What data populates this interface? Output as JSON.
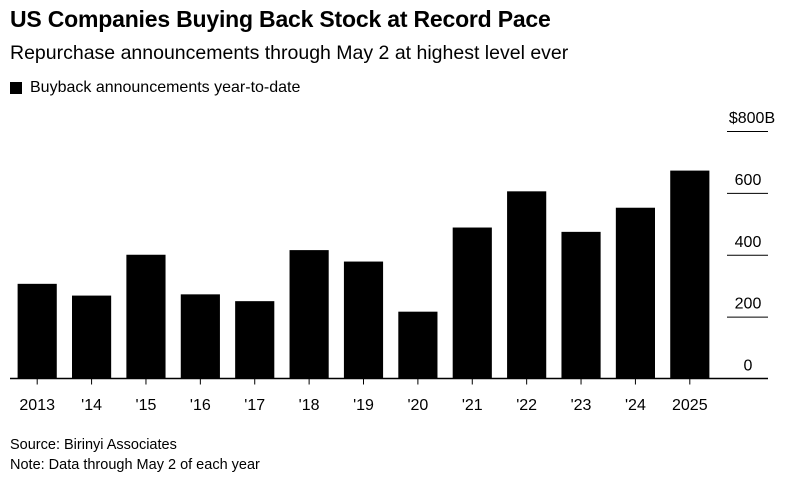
{
  "chart_data": {
    "type": "bar",
    "title": "US Companies Buying Back Stock at Record Pace",
    "subtitle": "Repurchase announcements through May 2 at highest level ever",
    "legend": [
      "Buyback announcements year-to-date"
    ],
    "categories": [
      "2013",
      "'14",
      "'15",
      "'16",
      "'17",
      "'18",
      "'19",
      "'20",
      "'21",
      "'22",
      "'23",
      "'24",
      "2025"
    ],
    "series": [
      {
        "name": "Buyback announcements year-to-date",
        "values": [
          306,
          268,
          400,
          272,
          250,
          415,
          378,
          216,
          488,
          605,
          474,
          552,
          672
        ]
      }
    ],
    "y_ticks": [
      {
        "value": 0,
        "label": "0"
      },
      {
        "value": 200,
        "label": "200"
      },
      {
        "value": 400,
        "label": "400"
      },
      {
        "value": 600,
        "label": "600"
      },
      {
        "value": 800,
        "label": "$800B"
      }
    ],
    "ylim": [
      0,
      800
    ],
    "xlabel": "",
    "ylabel": "",
    "grid": false,
    "axis_side": "right",
    "bar_color": "#000000"
  },
  "footer": {
    "source": "Source: Birinyi Associates",
    "note": "Note: Data through May 2 of each year"
  }
}
